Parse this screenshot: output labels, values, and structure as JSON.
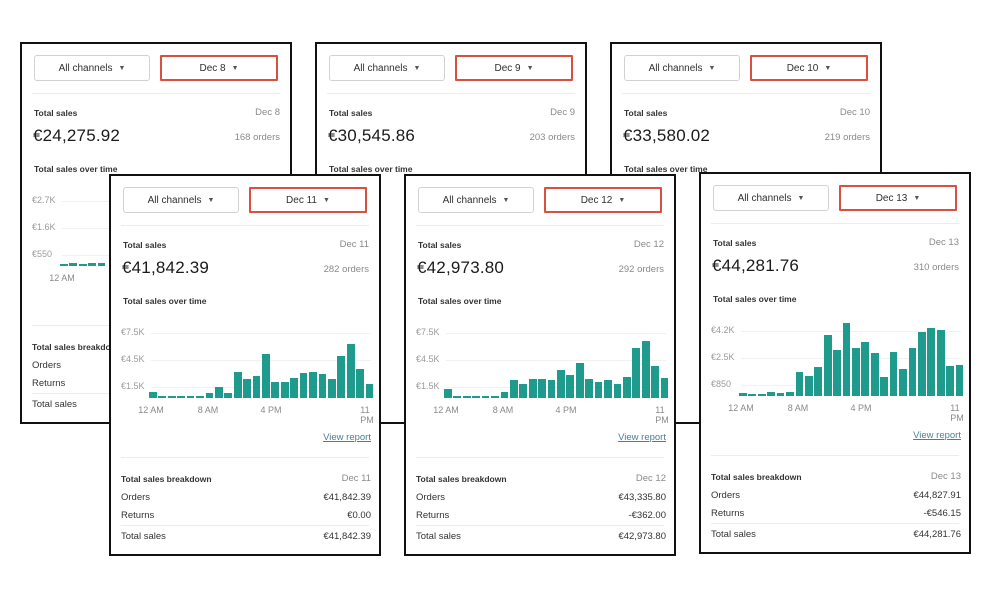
{
  "common": {
    "channel_label": "All channels",
    "total_sales_label": "Total sales",
    "over_time_label": "Total sales over time",
    "view_report_label": "View report",
    "breakdown_label": "Total sales breakdown",
    "orders_label": "Orders",
    "returns_label": "Returns",
    "total_row_label": "Total sales",
    "caret_icon": "caret-down-icon",
    "bar_color": "#1f9b8e",
    "highlight_color": "#d9503f"
  },
  "cards": [
    {
      "date": "Dec 8",
      "total": "€24,275.92",
      "orders": "168 orders",
      "chart_data": {
        "type": "bar",
        "x_ticks": [
          "12 AM"
        ],
        "y_ticks": [
          "€2.7K",
          "€1.6K",
          "€550"
        ],
        "ylim": [
          0,
          3200
        ],
        "values": [
          60,
          120,
          60,
          120,
          120
        ]
      },
      "breakdown": {
        "visible": true
      }
    },
    {
      "date": "Dec 9",
      "total": "€30,545.86",
      "orders": "203 orders",
      "chart_data": {
        "type": "bar",
        "x_ticks": [],
        "y_ticks": [],
        "ylim": [
          0,
          3200
        ],
        "values": []
      },
      "breakdown": {
        "visible": false
      }
    },
    {
      "date": "Dec 10",
      "total": "€33,580.02",
      "orders": "219 orders",
      "chart_data": {
        "type": "bar",
        "x_ticks": [],
        "y_ticks": [],
        "ylim": [
          0,
          3200
        ],
        "values": []
      },
      "breakdown": {
        "visible": false
      }
    },
    {
      "date": "Dec 11",
      "total": "€41,842.39",
      "orders": "282 orders",
      "chart_data": {
        "type": "bar",
        "x_ticks": [
          "12 AM",
          "8 AM",
          "4 PM",
          "11 PM"
        ],
        "y_ticks": [
          "€7.5K",
          "€4.5K",
          "€1.5K"
        ],
        "ylim": [
          0,
          8200
        ],
        "values": [
          600,
          100,
          100,
          100,
          100,
          100,
          500,
          1100,
          500,
          2700,
          2000,
          2300,
          4500,
          1600,
          1600,
          2100,
          2600,
          2700,
          2500,
          2000,
          4300,
          5500,
          3000,
          1400
        ]
      },
      "breakdown": {
        "visible": true,
        "orders": "€41,842.39",
        "returns": "€0.00",
        "total": "€41,842.39"
      }
    },
    {
      "date": "Dec 12",
      "total": "€42,973.80",
      "orders": "292 orders",
      "chart_data": {
        "type": "bar",
        "x_ticks": [
          "12 AM",
          "8 AM",
          "4 PM",
          "11 PM"
        ],
        "y_ticks": [
          "€7.5K",
          "€4.5K",
          "€1.5K"
        ],
        "ylim": [
          0,
          8200
        ],
        "values": [
          900,
          100,
          100,
          100,
          100,
          100,
          600,
          1800,
          1400,
          2000,
          2000,
          1900,
          2900,
          2400,
          3600,
          2000,
          1600,
          1900,
          1400,
          2200,
          5100,
          5800,
          3300,
          2100
        ]
      },
      "breakdown": {
        "visible": true,
        "orders": "€43,335.80",
        "returns": "-€362.00",
        "total": "€42,973.80"
      }
    },
    {
      "date": "Dec 13",
      "total": "€44,281.76",
      "orders": "310 orders",
      "chart_data": {
        "type": "bar",
        "x_ticks": [
          "12 AM",
          "8 AM",
          "4 PM",
          "11 PM"
        ],
        "y_ticks": [
          "€4.2K",
          "€2.5K",
          "€850"
        ],
        "ylim": [
          0,
          4600
        ],
        "values": [
          160,
          80,
          80,
          240,
          160,
          240,
          1410,
          1140,
          1670,
          3530,
          2630,
          4220,
          2760,
          3100,
          2450,
          1100,
          2530,
          1570,
          2780,
          3670,
          3940,
          3820,
          1730,
          1780
        ]
      },
      "breakdown": {
        "visible": true,
        "orders": "€44,827.91",
        "returns": "-€546.15",
        "total": "€44,281.76"
      }
    }
  ]
}
